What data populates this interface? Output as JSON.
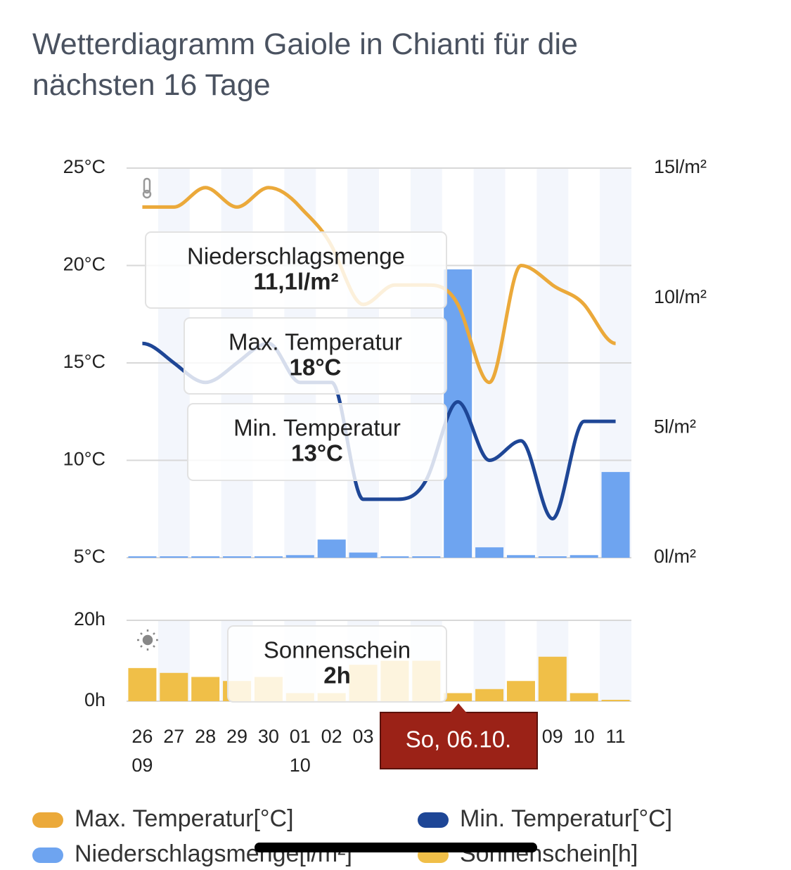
{
  "title": "Wetterdiagramm Gaiole in Chianti für die nächsten 16 Tage",
  "x_tooltip": "So, 06.10.",
  "chart_data": [
    {
      "type": "line",
      "categories": [
        "26",
        "27",
        "28",
        "29",
        "30",
        "01",
        "02",
        "03",
        null,
        null,
        null,
        null,
        null,
        "09",
        "10",
        "11"
      ],
      "category_months": [
        "09",
        null,
        null,
        null,
        null,
        "10",
        null,
        null,
        null,
        null,
        null,
        null,
        null,
        null,
        null,
        null
      ],
      "ylim": [
        5,
        25
      ],
      "yticks": [
        {
          "value": 5,
          "label": "5°C"
        },
        {
          "value": 10,
          "label": "10°C"
        },
        {
          "value": 15,
          "label": "15°C"
        },
        {
          "value": 20,
          "label": "20°C"
        },
        {
          "value": 25,
          "label": "25°C"
        }
      ],
      "y2lim": [
        0,
        15
      ],
      "y2ticks": [
        {
          "value": 0,
          "label": "0l/m²"
        },
        {
          "value": 5,
          "label": "5l/m²"
        },
        {
          "value": 10,
          "label": "10l/m²"
        },
        {
          "value": 15,
          "label": "15l/m²"
        }
      ],
      "grid": true,
      "series": [
        {
          "name": "Niederschlagsmenge[l/m²]",
          "color": "#6ea4f0",
          "type": "bar",
          "axis": "y2",
          "values": [
            0,
            0,
            0,
            0,
            0,
            0.1,
            0.7,
            0.2,
            0,
            0,
            11.1,
            0.4,
            0.1,
            0,
            0.1,
            3.3
          ]
        },
        {
          "name": "Max. Temperatur[°C]",
          "color": "#eba93a",
          "type": "line",
          "values": [
            23,
            23,
            24,
            23,
            24,
            23,
            21,
            18,
            19,
            19,
            18,
            14,
            20,
            19,
            18,
            16
          ]
        },
        {
          "name": "Min. Temperatur[°C]",
          "color": "#1e4696",
          "type": "line",
          "values": [
            16,
            15,
            14,
            15,
            16,
            14,
            14,
            8,
            8,
            9,
            13,
            10,
            11,
            7,
            12,
            12
          ]
        }
      ],
      "tooltip": [
        {
          "label": "Niederschlagsmenge",
          "value": "11,1l/m²"
        },
        {
          "label": "Max. Temperatur",
          "value": "18°C"
        },
        {
          "label": "Min. Temperatur",
          "value": "13°C"
        }
      ]
    },
    {
      "type": "bar",
      "ylim": [
        0,
        20
      ],
      "yticks": [
        {
          "value": 0,
          "label": "0h"
        },
        {
          "value": 20,
          "label": "20h"
        }
      ],
      "grid": true,
      "series": [
        {
          "name": "Sonnenschein[h]",
          "color": "#f0bf48",
          "values": [
            8.2,
            7,
            6,
            5,
            6,
            2,
            2,
            9,
            10,
            10,
            2,
            3,
            5,
            11,
            2,
            0.2
          ]
        }
      ],
      "tooltip": [
        {
          "label": "Sonnenschein",
          "value": "2h"
        }
      ]
    }
  ]
}
